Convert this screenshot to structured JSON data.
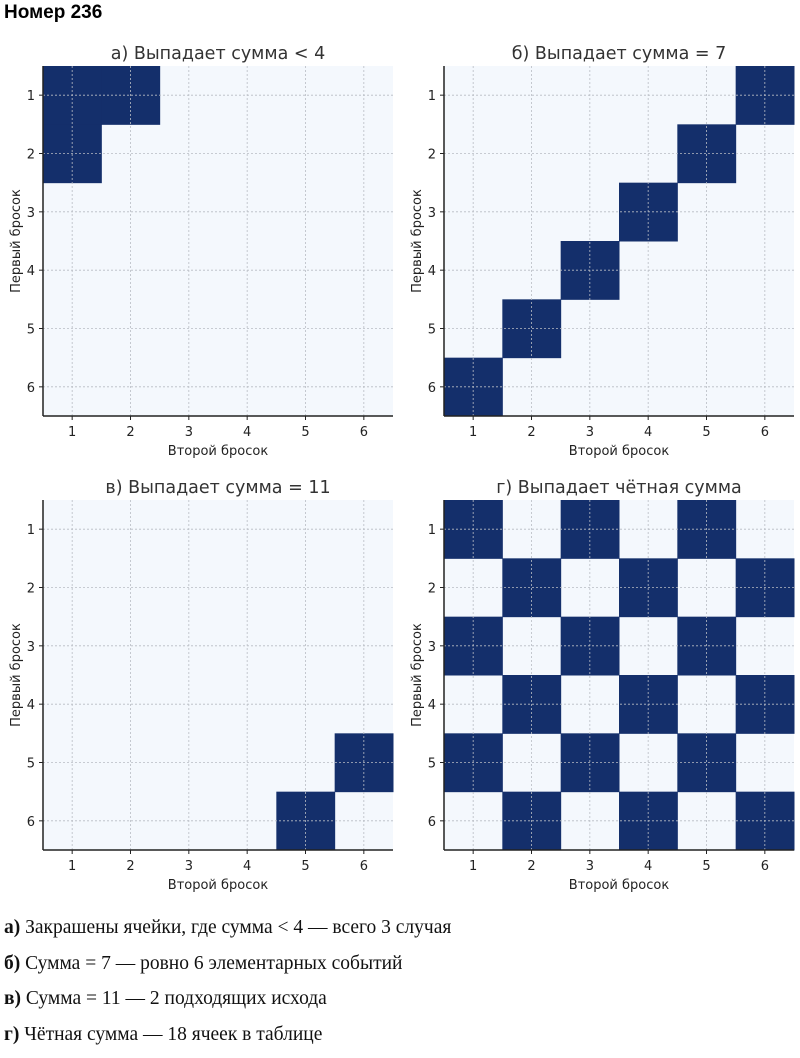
{
  "page_title": "Номер 236",
  "chart_data": [
    {
      "type": "heatmap",
      "title": "а) Выпадает сумма < 4",
      "xlabel": "Второй бросок",
      "ylabel": "Первый бросок",
      "x_ticks": [
        "1",
        "2",
        "3",
        "4",
        "5",
        "6"
      ],
      "y_ticks": [
        "1",
        "2",
        "3",
        "4",
        "5",
        "6"
      ],
      "grid": true,
      "matrix": [
        [
          1,
          1,
          0,
          0,
          0,
          0
        ],
        [
          1,
          0,
          0,
          0,
          0,
          0
        ],
        [
          0,
          0,
          0,
          0,
          0,
          0
        ],
        [
          0,
          0,
          0,
          0,
          0,
          0
        ],
        [
          0,
          0,
          0,
          0,
          0,
          0
        ],
        [
          0,
          0,
          0,
          0,
          0,
          0
        ]
      ]
    },
    {
      "type": "heatmap",
      "title": "б) Выпадает сумма = 7",
      "xlabel": "Второй бросок",
      "ylabel": "Первый бросок",
      "x_ticks": [
        "1",
        "2",
        "3",
        "4",
        "5",
        "6"
      ],
      "y_ticks": [
        "1",
        "2",
        "3",
        "4",
        "5",
        "6"
      ],
      "grid": true,
      "matrix": [
        [
          0,
          0,
          0,
          0,
          0,
          1
        ],
        [
          0,
          0,
          0,
          0,
          1,
          0
        ],
        [
          0,
          0,
          0,
          1,
          0,
          0
        ],
        [
          0,
          0,
          1,
          0,
          0,
          0
        ],
        [
          0,
          1,
          0,
          0,
          0,
          0
        ],
        [
          1,
          0,
          0,
          0,
          0,
          0
        ]
      ]
    },
    {
      "type": "heatmap",
      "title": "в) Выпадает сумма = 11",
      "xlabel": "Второй бросок",
      "ylabel": "Первый бросок",
      "x_ticks": [
        "1",
        "2",
        "3",
        "4",
        "5",
        "6"
      ],
      "y_ticks": [
        "1",
        "2",
        "3",
        "4",
        "5",
        "6"
      ],
      "grid": true,
      "matrix": [
        [
          0,
          0,
          0,
          0,
          0,
          0
        ],
        [
          0,
          0,
          0,
          0,
          0,
          0
        ],
        [
          0,
          0,
          0,
          0,
          0,
          0
        ],
        [
          0,
          0,
          0,
          0,
          0,
          0
        ],
        [
          0,
          0,
          0,
          0,
          0,
          1
        ],
        [
          0,
          0,
          0,
          0,
          1,
          0
        ]
      ]
    },
    {
      "type": "heatmap",
      "title": "г) Выпадает чётная сумма",
      "xlabel": "Второй бросок",
      "ylabel": "Первый бросок",
      "x_ticks": [
        "1",
        "2",
        "3",
        "4",
        "5",
        "6"
      ],
      "y_ticks": [
        "1",
        "2",
        "3",
        "4",
        "5",
        "6"
      ],
      "grid": true,
      "matrix": [
        [
          1,
          0,
          1,
          0,
          1,
          0
        ],
        [
          0,
          1,
          0,
          1,
          0,
          1
        ],
        [
          1,
          0,
          1,
          0,
          1,
          0
        ],
        [
          0,
          1,
          0,
          1,
          0,
          1
        ],
        [
          1,
          0,
          1,
          0,
          1,
          0
        ],
        [
          0,
          1,
          0,
          1,
          0,
          1
        ]
      ]
    }
  ],
  "colors": {
    "fill": "#142f6b",
    "background": "#f4f8fd",
    "grid": "#b8bcc4",
    "axis": "#222222"
  },
  "notes": [
    {
      "label": "а)",
      "text": " Закрашены ячейки, где сумма < 4 — всего 3 случая"
    },
    {
      "label": "б)",
      "text": " Сумма = 7 — ровно 6 элементарных событий"
    },
    {
      "label": "в)",
      "text": " Сумма = 11 — 2 подходящих исхода"
    },
    {
      "label": "г)",
      "text": " Чётная сумма — 18 ячеек в таблице"
    }
  ]
}
